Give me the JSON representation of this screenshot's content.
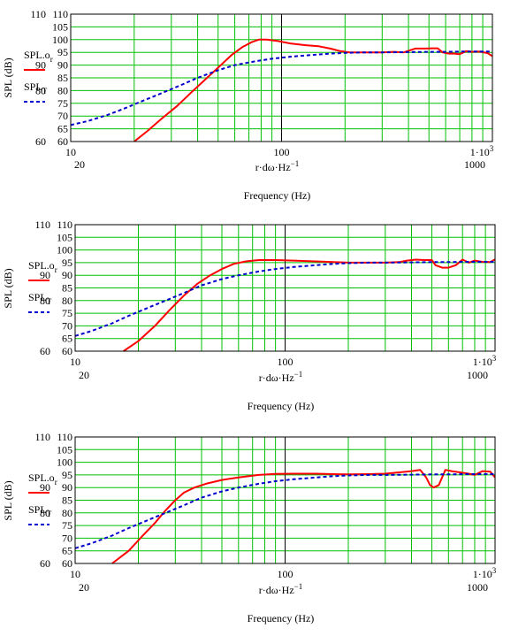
{
  "chart_data": [
    {
      "type": "line",
      "ylabel": "SPL (dB)",
      "xlabel_expr": "r·dω·Hz",
      "xlabel_exp": "−1",
      "freq_label": "Frequency (Hz)",
      "x_scale": "log",
      "xlim": [
        10,
        1000
      ],
      "ylim": [
        60,
        110
      ],
      "grid": true,
      "legend_position": "left",
      "y_ticks": [
        "110",
        "105",
        "100",
        "95",
        "90",
        "85",
        "80",
        "75",
        "70",
        "65",
        "60"
      ],
      "y_tick_values": [
        110,
        105,
        100,
        95,
        90,
        85,
        80,
        75,
        70,
        65,
        60
      ],
      "y_extra_labels": [
        "110",
        "90",
        "80",
        "60"
      ],
      "y_extra_values": [
        110,
        90,
        80,
        60
      ],
      "x_tick_left": "10",
      "x_tick_mid": "100",
      "x_tick_right_base": "1·10",
      "x_tick_right_exp": "3",
      "x_sub_left": "20",
      "x_sub_right": "1000",
      "series": [
        {
          "name": "SPL.o",
          "subscript": "r",
          "color": "#ff0000",
          "style": "solid",
          "x": [
            20,
            23,
            27,
            32,
            37,
            43,
            50,
            58,
            65,
            72,
            78,
            85,
            95,
            110,
            130,
            150,
            170,
            190,
            210,
            250,
            300,
            340,
            380,
            430,
            480,
            520,
            550,
            580,
            620,
            660,
            700,
            750,
            800,
            870,
            950,
            1000
          ],
          "y": [
            60,
            64,
            69,
            74,
            79,
            84,
            89,
            94,
            97,
            99,
            100,
            100,
            99.5,
            98.5,
            97.8,
            97.4,
            96.5,
            95.5,
            95,
            95,
            95,
            95.2,
            95,
            96.5,
            96.5,
            96.6,
            96.6,
            95,
            94.5,
            94.5,
            94.3,
            95.5,
            95.2,
            95.3,
            94.7,
            93.5
          ]
        },
        {
          "name": "SPL",
          "subscript": "T",
          "color": "#0000cc",
          "style": "dashed",
          "x": [
            10,
            12,
            15,
            18,
            22,
            27,
            33,
            40,
            50,
            60,
            75,
            90,
            110,
            140,
            170,
            200,
            250,
            300,
            400,
            500,
            600,
            700,
            800,
            900,
            1000
          ],
          "y": [
            66.5,
            68,
            70.5,
            73,
            76,
            79,
            82,
            85,
            88,
            90,
            91.5,
            92.5,
            93.3,
            94,
            94.5,
            94.8,
            95,
            95,
            95.1,
            95.2,
            95.2,
            95.3,
            95.3,
            95.3,
            95.3
          ]
        }
      ]
    },
    {
      "type": "line",
      "ylabel": "SPL (dB)",
      "xlabel_expr": "r·dω·Hz",
      "xlabel_exp": "−1",
      "freq_label": "Frequency (Hz)",
      "x_scale": "log",
      "xlim": [
        10,
        1000
      ],
      "ylim": [
        60,
        110
      ],
      "grid": true,
      "legend_position": "left",
      "y_ticks": [
        "110",
        "105",
        "100",
        "95",
        "90",
        "85",
        "80",
        "75",
        "70",
        "65",
        "60"
      ],
      "y_tick_values": [
        110,
        105,
        100,
        95,
        90,
        85,
        80,
        75,
        70,
        65,
        60
      ],
      "y_extra_labels": [
        "110",
        "90",
        "80",
        "60"
      ],
      "y_extra_values": [
        110,
        90,
        80,
        60
      ],
      "x_tick_left": "10",
      "x_tick_mid": "100",
      "x_tick_right_base": "1·10",
      "x_tick_right_exp": "3",
      "x_sub_left": "20",
      "x_sub_right": "1000",
      "series": [
        {
          "name": "SPL.o",
          "subscript": "r",
          "color": "#ff0000",
          "style": "solid",
          "x": [
            17,
            20,
            24,
            28,
            33,
            38,
            44,
            50,
            57,
            65,
            75,
            90,
            110,
            140,
            170,
            200,
            250,
            300,
            350,
            380,
            420,
            460,
            500,
            520,
            560,
            600,
            650,
            700,
            750,
            800,
            870,
            950,
            1000
          ],
          "y": [
            60,
            64,
            70,
            76,
            82,
            86.5,
            90,
            92.5,
            94.5,
            95.5,
            96,
            96,
            95.8,
            95.5,
            95.2,
            95,
            95,
            95,
            95.2,
            95.8,
            96.2,
            96,
            96,
            94,
            93,
            93,
            94,
            96.2,
            95,
            95.8,
            95.3,
            95.2,
            96.3
          ]
        },
        {
          "name": "SPL",
          "subscript": "T",
          "color": "#0000cc",
          "style": "dashed",
          "x": [
            10,
            12,
            15,
            18,
            22,
            27,
            33,
            40,
            50,
            60,
            75,
            90,
            110,
            140,
            170,
            200,
            250,
            300,
            400,
            500,
            600,
            700,
            800,
            900,
            1000
          ],
          "y": [
            66,
            68,
            71,
            74,
            77,
            80,
            83,
            86,
            88.5,
            90,
            91.5,
            92.5,
            93.3,
            94,
            94.5,
            94.8,
            95,
            95,
            95.1,
            95.2,
            95.2,
            95.3,
            95.3,
            95.3,
            95.3
          ]
        }
      ]
    },
    {
      "type": "line",
      "ylabel": "SPL (dB)",
      "xlabel_expr": "r·dω·Hz",
      "xlabel_exp": "−1",
      "freq_label": "Frequency (Hz)",
      "x_scale": "log",
      "xlim": [
        10,
        1000
      ],
      "ylim": [
        60,
        110
      ],
      "grid": true,
      "legend_position": "left",
      "y_ticks": [
        "110",
        "105",
        "100",
        "95",
        "90",
        "85",
        "80",
        "75",
        "70",
        "65",
        "60"
      ],
      "y_tick_values": [
        110,
        105,
        100,
        95,
        90,
        85,
        80,
        75,
        70,
        65,
        60
      ],
      "y_extra_labels": [
        "110",
        "90",
        "80",
        "60"
      ],
      "y_extra_values": [
        110,
        90,
        80,
        60
      ],
      "x_tick_left": "10",
      "x_tick_mid": "100",
      "x_tick_right_base": "1·10",
      "x_tick_right_exp": "3",
      "x_sub_left": "20",
      "x_sub_right": "1000",
      "series": [
        {
          "name": "SPL.o",
          "subscript": "r",
          "color": "#ff0000",
          "style": "solid",
          "x": [
            15,
            18,
            21,
            24,
            27,
            30,
            33,
            37,
            42,
            50,
            60,
            75,
            90,
            110,
            140,
            170,
            200,
            250,
            300,
            350,
            400,
            440,
            470,
            490,
            510,
            540,
            580,
            620,
            680,
            750,
            800,
            870,
            950,
            1000
          ],
          "y": [
            60,
            65,
            71,
            76,
            81,
            85,
            88,
            90,
            91.5,
            93,
            94,
            95,
            95.4,
            95.5,
            95.5,
            95.3,
            95.2,
            95.3,
            95.5,
            96,
            96.5,
            97,
            94,
            91,
            90,
            91,
            97,
            96.5,
            96,
            95.5,
            95,
            96.5,
            96.3,
            94
          ]
        },
        {
          "name": "SPL",
          "subscript": "T",
          "color": "#0000cc",
          "style": "dashed",
          "x": [
            10,
            12,
            15,
            18,
            22,
            27,
            33,
            40,
            50,
            60,
            75,
            90,
            110,
            140,
            170,
            200,
            250,
            300,
            400,
            500,
            600,
            700,
            800,
            900,
            1000
          ],
          "y": [
            66,
            68,
            71,
            74,
            77,
            80,
            83,
            86,
            88.5,
            90,
            91.5,
            92.5,
            93.3,
            94,
            94.5,
            94.8,
            95,
            95,
            95.1,
            95.2,
            95.2,
            95.3,
            95.3,
            95.3,
            95.3
          ]
        }
      ]
    }
  ]
}
